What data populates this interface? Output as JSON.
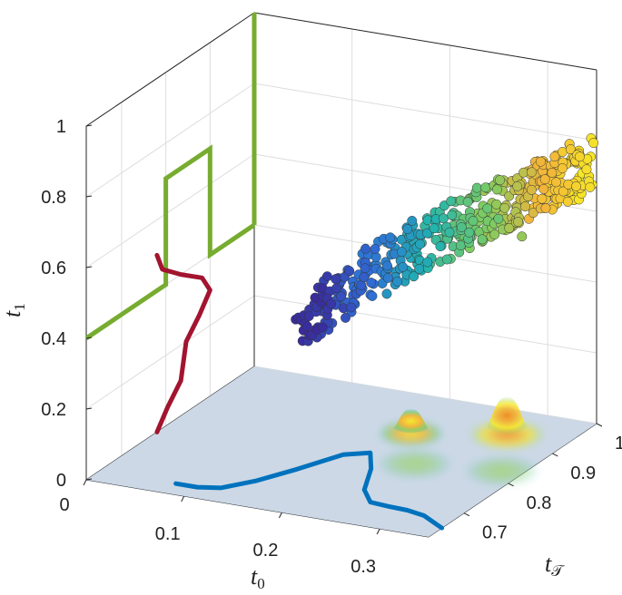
{
  "chart_data": {
    "type": "scatter3d",
    "title": "",
    "axes": {
      "x": {
        "label": "t",
        "label_sub": "0",
        "range": [
          0,
          0.35
        ],
        "ticks": [
          0,
          0.1,
          0.2,
          0.3
        ],
        "tick_labels": [
          "0",
          "0.1",
          "0.2",
          "0.3"
        ]
      },
      "y": {
        "label": "t",
        "label_sub": "𝒯",
        "range": [
          0.62,
          1.0
        ],
        "ticks": [
          0.7,
          0.8,
          0.9,
          1.0
        ],
        "tick_labels": [
          "0.7",
          "0.8",
          "0.9",
          "1"
        ]
      },
      "z": {
        "label": "t",
        "label_sub": "1",
        "range": [
          0,
          1
        ],
        "ticks": [
          0,
          0.2,
          0.4,
          0.6,
          0.8,
          1
        ],
        "tick_labels": [
          "0",
          "0.2",
          "0.4",
          "0.6",
          "0.8",
          "1"
        ]
      }
    },
    "grid": true,
    "scatter_cloud": {
      "t0_range": [
        0.17,
        0.35
      ],
      "tT_range": [
        0.74,
        0.99
      ],
      "t1_range": [
        0.38,
        0.82
      ],
      "colormap": [
        "#3a2a9b",
        "#2f6fd8",
        "#20b3b0",
        "#7fcc61",
        "#f2b53a",
        "#f7ea26"
      ],
      "approx_count": 450,
      "outliers": [
        {
          "t0": 0.27,
          "tT": 0.93,
          "t1": 0.63
        },
        {
          "t0": 0.27,
          "tT": 0.955,
          "t1": 0.58
        },
        {
          "t0": 0.285,
          "tT": 0.975,
          "t1": 0.52
        }
      ]
    },
    "marginal_t0": {
      "color": "#0072bd",
      "x": [
        0.078,
        0.1,
        0.12,
        0.14,
        0.16,
        0.18,
        0.2,
        0.22,
        0.24,
        0.26,
        0.28,
        0.3,
        0.32,
        0.34,
        0.35
      ],
      "density": [
        0.0,
        0.0,
        0.05,
        0.25,
        0.55,
        0.9,
        1.0,
        0.75,
        0.4,
        0.22,
        0.2,
        0.19,
        0.15,
        0.05,
        0.0
      ]
    },
    "marginal_t1": {
      "color": "#a2142f",
      "x": [
        0.0,
        0.05,
        0.1,
        0.15,
        0.2,
        0.25,
        0.3,
        0.35,
        0.4,
        0.45,
        0.5
      ],
      "density": [
        0.0,
        0.2,
        0.45,
        0.5,
        0.55,
        0.8,
        1.0,
        0.85,
        0.45,
        0.1,
        0.0
      ]
    },
    "marginal_tT": {
      "color": "#77ac30",
      "regions": [
        {
          "from": 0.62,
          "to": 0.8,
          "value": 0
        },
        {
          "from": 0.8,
          "to": 0.9,
          "value": 1
        },
        {
          "from": 0.9,
          "to": 1.0,
          "value": 0
        }
      ]
    },
    "floor_density": {
      "base_color": "#ccd8e6",
      "peaks": [
        {
          "t0": 0.29,
          "tT": 0.93,
          "amplitude": 1.0,
          "width": 0.035
        },
        {
          "t0": 0.21,
          "tT": 0.89,
          "amplitude": 0.65,
          "width": 0.03
        },
        {
          "t0": 0.33,
          "tT": 0.83,
          "amplitude": 0.45,
          "width": 0.035
        },
        {
          "t0": 0.25,
          "tT": 0.81,
          "amplitude": 0.3,
          "width": 0.035
        }
      ]
    }
  }
}
